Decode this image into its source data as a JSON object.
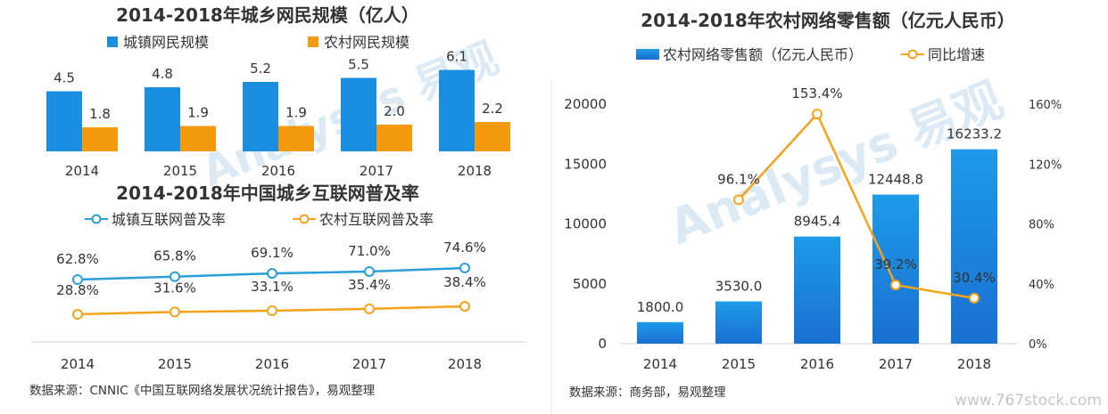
{
  "left_panel": {
    "source": "数据来源：CNNIC《中国互联网络发展状况统计报告》，易观整理"
  },
  "right_panel": {
    "source": "数据来源：商务部，易观整理"
  },
  "watermark": {
    "brand": "Analysys 易观",
    "url": "www.767stock.com"
  },
  "colors": {
    "urban_bar": "#1a8fe0",
    "rural_bar": "#f59a0c",
    "urban_line": "#2a9fd8",
    "rural_line": "#f5a31a",
    "sales_bar_top": "#1e9be8",
    "sales_bar_bottom": "#1a6fd0",
    "growth_line": "#f5a31a"
  },
  "chart_data": [
    {
      "type": "bar",
      "title": "2014-2018年城乡网民规模（亿人）",
      "categories": [
        "2014",
        "2015",
        "2016",
        "2017",
        "2018"
      ],
      "series": [
        {
          "name": "城镇网民规模",
          "values": [
            4.5,
            4.8,
            5.2,
            5.5,
            6.1
          ],
          "labels": [
            "4.5",
            "4.8",
            "5.2",
            "5.5",
            "6.1"
          ]
        },
        {
          "name": "农村网民规模",
          "values": [
            1.8,
            1.9,
            1.9,
            2.0,
            2.2
          ],
          "labels": [
            "1.8",
            "1.9",
            "1.9",
            "2.0",
            "2.2"
          ]
        }
      ],
      "ylim": [
        0,
        7
      ],
      "legend": "top"
    },
    {
      "type": "line",
      "title": "2014-2018年中国城乡互联网普及率",
      "categories": [
        "2014",
        "2015",
        "2016",
        "2017",
        "2018"
      ],
      "series": [
        {
          "name": "城镇互联网普及率",
          "values": [
            62.8,
            65.8,
            69.1,
            71.0,
            74.6
          ],
          "labels": [
            "62.8%",
            "65.8%",
            "69.1%",
            "71.0%",
            "74.6%"
          ]
        },
        {
          "name": "农村互联网普及率",
          "values": [
            28.8,
            31.6,
            33.1,
            35.4,
            38.4
          ],
          "labels": [
            "28.8%",
            "31.6%",
            "33.1%",
            "35.4%",
            "38.4%"
          ]
        }
      ],
      "legend": "top"
    },
    {
      "type": "bar",
      "title": "2014-2018年农村网络零售额（亿元人民币）",
      "categories": [
        "2014",
        "2015",
        "2016",
        "2017",
        "2018"
      ],
      "series": [
        {
          "name": "农村网络零售额（亿元人民币）",
          "axis": "left",
          "values": [
            1800.0,
            3530.0,
            8945.4,
            12448.8,
            16233.2
          ],
          "labels": [
            "1800.0",
            "3530.0",
            "8945.4",
            "12448.8",
            "16233.2"
          ]
        },
        {
          "name": "同比增速",
          "axis": "right",
          "type": "line",
          "x": [
            "2015",
            "2016",
            "2017",
            "2018"
          ],
          "values": [
            96.1,
            153.4,
            39.2,
            30.4
          ],
          "labels": [
            "96.1%",
            "153.4%",
            "39.2%",
            "30.4%"
          ]
        }
      ],
      "ylim": [
        0,
        20000
      ],
      "y_ticks": [
        "0",
        "5000",
        "10000",
        "15000",
        "20000"
      ],
      "y2lim": [
        0,
        160
      ],
      "y2_ticks": [
        "0%",
        "40%",
        "80%",
        "120%",
        "160%"
      ],
      "legend": "top"
    }
  ]
}
